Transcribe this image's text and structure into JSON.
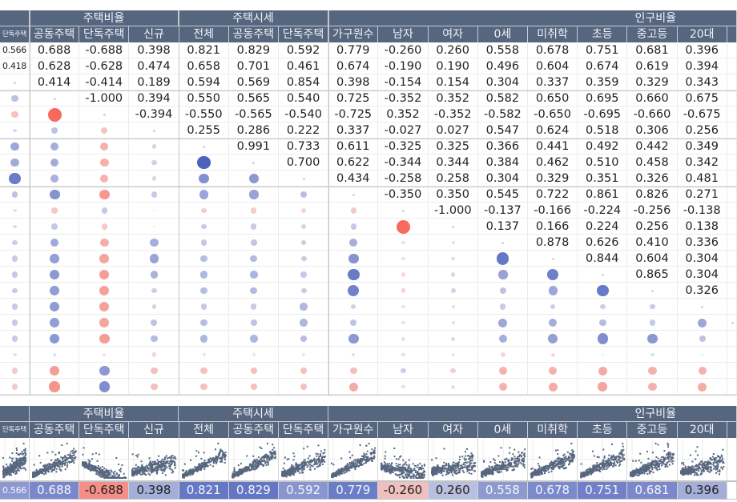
{
  "group_headers": [
    "",
    "주택비율",
    "주택시세",
    "인구비율"
  ],
  "columns": [
    "단독주택",
    "공동주택",
    "단독주택",
    "신규",
    "전체",
    "공동주택",
    "단독주택",
    "가구원수",
    "남자",
    "여자",
    "0세",
    "미취학",
    "초등",
    "중고등",
    "20대",
    ""
  ],
  "colors": {
    "header_bg": "#56667f",
    "positive": "#4c60bd",
    "negative": "#f86a5e",
    "scatter_point": "#56667f"
  },
  "matrix": [
    [
      "0.566",
      "0.688",
      "-0.688",
      "0.398",
      "0.821",
      "0.829",
      "0.592",
      "0.779",
      "-0.260",
      "0.260",
      "0.558",
      "0.678",
      "0.751",
      "0.681",
      "0.396",
      null
    ],
    [
      "0.418",
      "0.628",
      "-0.628",
      "0.474",
      "0.658",
      "0.701",
      "0.461",
      "0.674",
      "-0.190",
      "0.190",
      "0.496",
      "0.604",
      "0.674",
      "0.619",
      "0.394",
      null
    ],
    [
      null,
      "0.414",
      "-0.414",
      "0.189",
      "0.594",
      "0.569",
      "0.854",
      "0.398",
      "-0.154",
      "0.154",
      "0.304",
      "0.337",
      "0.359",
      "0.329",
      "0.343",
      null
    ],
    [
      0.414,
      null,
      "-1.000",
      "0.394",
      "0.550",
      "0.565",
      "0.540",
      "0.725",
      "-0.352",
      "0.352",
      "0.582",
      "0.650",
      "0.695",
      "0.660",
      "0.675",
      null
    ],
    [
      -0.414,
      -1.0,
      null,
      "-0.394",
      "-0.550",
      "-0.565",
      "-0.540",
      "-0.725",
      "0.352",
      "-0.352",
      "-0.582",
      "-0.650",
      "-0.695",
      "-0.660",
      "-0.675",
      null
    ],
    [
      0.189,
      0.394,
      -0.394,
      null,
      "0.255",
      "0.286",
      "0.222",
      "0.337",
      "-0.027",
      "0.027",
      "0.547",
      "0.624",
      "0.518",
      "0.306",
      "0.256",
      null
    ],
    [
      0.594,
      0.55,
      -0.55,
      0.255,
      null,
      "0.991",
      "0.733",
      "0.611",
      "-0.325",
      "0.325",
      "0.366",
      "0.441",
      "0.492",
      "0.442",
      "0.349",
      null
    ],
    [
      0.569,
      0.565,
      -0.565,
      0.286,
      0.991,
      null,
      "0.700",
      "0.622",
      "-0.344",
      "0.344",
      "0.384",
      "0.462",
      "0.510",
      "0.458",
      "0.342",
      null
    ],
    [
      0.854,
      0.54,
      -0.54,
      0.222,
      0.733,
      0.7,
      null,
      "0.434",
      "-0.258",
      "0.258",
      "0.304",
      "0.329",
      "0.351",
      "0.326",
      "0.481",
      null
    ],
    [
      0.398,
      0.725,
      -0.725,
      0.337,
      0.611,
      0.622,
      0.434,
      null,
      "-0.350",
      "0.350",
      "0.545",
      "0.722",
      "0.861",
      "0.826",
      "0.271",
      null
    ],
    [
      -0.154,
      -0.352,
      0.352,
      -0.027,
      -0.325,
      -0.344,
      -0.258,
      -0.35,
      null,
      "-1.000",
      "-0.137",
      "-0.166",
      "-0.224",
      "-0.256",
      "-0.138",
      null
    ],
    [
      0.154,
      0.352,
      -0.352,
      0.027,
      0.325,
      0.344,
      0.258,
      0.35,
      -1.0,
      null,
      "0.137",
      "0.166",
      "0.224",
      "0.256",
      "0.138",
      null
    ],
    [
      0.304,
      0.582,
      -0.582,
      0.547,
      0.366,
      0.384,
      0.304,
      0.545,
      -0.137,
      0.137,
      null,
      "0.878",
      "0.626",
      "0.410",
      "0.336",
      null
    ],
    [
      0.337,
      0.65,
      -0.65,
      0.624,
      0.441,
      0.462,
      0.329,
      0.722,
      -0.166,
      0.166,
      0.878,
      null,
      "0.844",
      "0.604",
      "0.304",
      null
    ],
    [
      0.359,
      0.695,
      -0.695,
      0.518,
      0.492,
      0.51,
      0.351,
      0.861,
      -0.224,
      0.224,
      0.626,
      0.844,
      null,
      "0.865",
      "0.304",
      null
    ],
    [
      0.329,
      0.66,
      -0.66,
      0.306,
      0.442,
      0.458,
      0.326,
      0.826,
      -0.256,
      0.256,
      0.41,
      0.604,
      0.865,
      null,
      "0.326",
      null
    ],
    [
      0.343,
      0.675,
      -0.675,
      0.256,
      0.349,
      0.342,
      0.481,
      0.271,
      -0.138,
      0.138,
      0.336,
      0.304,
      0.304,
      0.326,
      null,
      null
    ],
    [
      0.35,
      0.65,
      -0.65,
      0.4,
      0.45,
      0.4,
      0.5,
      0.4,
      -0.15,
      0.15,
      0.6,
      0.55,
      0.45,
      0.35,
      0.6,
      null
    ],
    [
      0.35,
      0.7,
      -0.7,
      0.45,
      0.5,
      0.5,
      0.45,
      0.7,
      -0.2,
      0.2,
      0.55,
      0.65,
      0.75,
      0.7,
      0.4,
      null
    ],
    [
      -0.15,
      0.12,
      -0.12,
      -0.25,
      -0.15,
      -0.12,
      -0.12,
      0.15,
      0.15,
      -0.15,
      -0.25,
      -0.2,
      0.05,
      0.15,
      0.05,
      null
    ],
    [
      -0.35,
      -0.7,
      0.7,
      -0.45,
      -0.45,
      -0.45,
      -0.45,
      -0.45,
      0.3,
      -0.3,
      -0.55,
      -0.55,
      -0.6,
      -0.55,
      -0.55,
      null
    ],
    [
      -0.35,
      -0.75,
      0.75,
      -0.45,
      -0.45,
      -0.45,
      -0.45,
      -0.6,
      0.15,
      -0.2,
      -0.55,
      -0.6,
      -0.65,
      -0.55,
      -0.6,
      null
    ]
  ],
  "summary_values": [
    "0.566",
    "0.688",
    "-0.688",
    "0.398",
    "0.821",
    "0.829",
    "0.592",
    "0.779",
    "-0.260",
    "0.260",
    "0.558",
    "0.678",
    "0.751",
    "0.681",
    "0.396",
    ""
  ]
}
